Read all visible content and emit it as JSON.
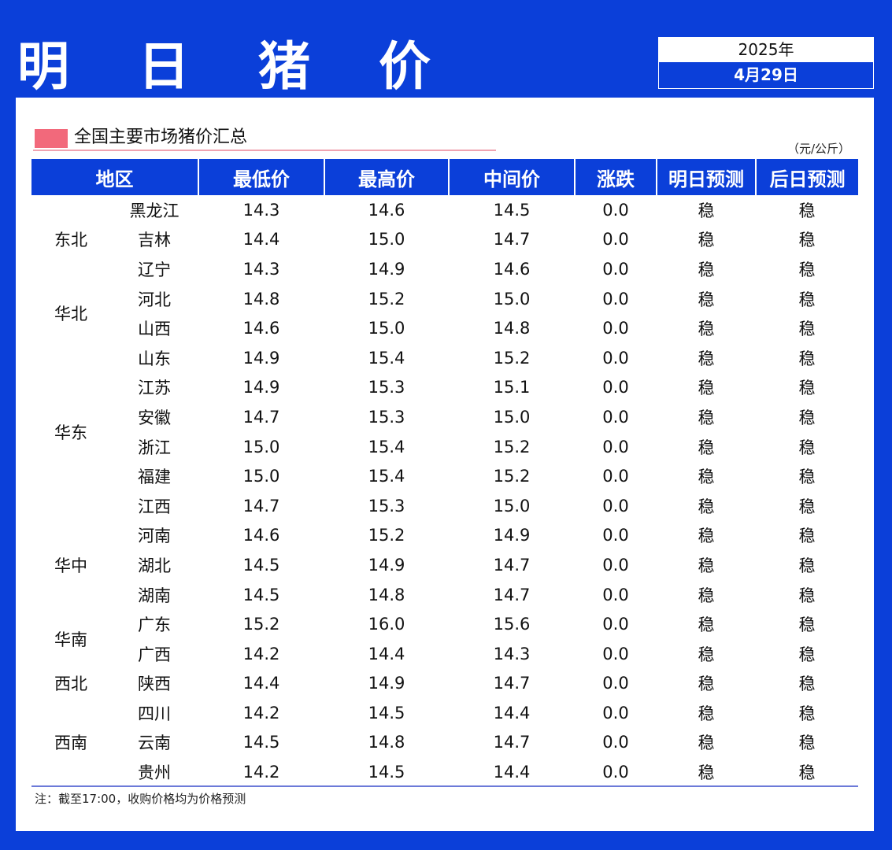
{
  "header": {
    "title": "明 日 猪 价",
    "year": "2025年",
    "date": "4月29日"
  },
  "subheader": {
    "title": "全国主要市场猪价汇总",
    "unit": "（元/公斤）"
  },
  "table": {
    "columns": [
      "地区",
      "最低价",
      "最高价",
      "中间价",
      "涨跌",
      "明日预测",
      "后日预测"
    ],
    "groups": [
      {
        "region": "东北",
        "rows": [
          {
            "province": "黑龙江",
            "low": "14.3",
            "high": "14.6",
            "mid": "14.5",
            "change": "0.0",
            "tomorrow": "稳",
            "after": "稳"
          },
          {
            "province": "吉林",
            "low": "14.4",
            "high": "15.0",
            "mid": "14.7",
            "change": "0.0",
            "tomorrow": "稳",
            "after": "稳"
          },
          {
            "province": "辽宁",
            "low": "14.3",
            "high": "14.9",
            "mid": "14.6",
            "change": "0.0",
            "tomorrow": "稳",
            "after": "稳"
          }
        ]
      },
      {
        "region": "华北",
        "rows": [
          {
            "province": "河北",
            "low": "14.8",
            "high": "15.2",
            "mid": "15.0",
            "change": "0.0",
            "tomorrow": "稳",
            "after": "稳"
          },
          {
            "province": "山西",
            "low": "14.6",
            "high": "15.0",
            "mid": "14.8",
            "change": "0.0",
            "tomorrow": "稳",
            "after": "稳"
          }
        ]
      },
      {
        "region": "华东",
        "rows": [
          {
            "province": "山东",
            "low": "14.9",
            "high": "15.4",
            "mid": "15.2",
            "change": "0.0",
            "tomorrow": "稳",
            "after": "稳"
          },
          {
            "province": "江苏",
            "low": "14.9",
            "high": "15.3",
            "mid": "15.1",
            "change": "0.0",
            "tomorrow": "稳",
            "after": "稳"
          },
          {
            "province": "安徽",
            "low": "14.7",
            "high": "15.3",
            "mid": "15.0",
            "change": "0.0",
            "tomorrow": "稳",
            "after": "稳"
          },
          {
            "province": "浙江",
            "low": "15.0",
            "high": "15.4",
            "mid": "15.2",
            "change": "0.0",
            "tomorrow": "稳",
            "after": "稳"
          },
          {
            "province": "福建",
            "low": "15.0",
            "high": "15.4",
            "mid": "15.2",
            "change": "0.0",
            "tomorrow": "稳",
            "after": "稳"
          },
          {
            "province": "江西",
            "low": "14.7",
            "high": "15.3",
            "mid": "15.0",
            "change": "0.0",
            "tomorrow": "稳",
            "after": "稳"
          }
        ]
      },
      {
        "region": "华中",
        "rows": [
          {
            "province": "河南",
            "low": "14.6",
            "high": "15.2",
            "mid": "14.9",
            "change": "0.0",
            "tomorrow": "稳",
            "after": "稳"
          },
          {
            "province": "湖北",
            "low": "14.5",
            "high": "14.9",
            "mid": "14.7",
            "change": "0.0",
            "tomorrow": "稳",
            "after": "稳"
          },
          {
            "province": "湖南",
            "low": "14.5",
            "high": "14.8",
            "mid": "14.7",
            "change": "0.0",
            "tomorrow": "稳",
            "after": "稳"
          }
        ]
      },
      {
        "region": "华南",
        "rows": [
          {
            "province": "广东",
            "low": "15.2",
            "high": "16.0",
            "mid": "15.6",
            "change": "0.0",
            "tomorrow": "稳",
            "after": "稳"
          },
          {
            "province": "广西",
            "low": "14.2",
            "high": "14.4",
            "mid": "14.3",
            "change": "0.0",
            "tomorrow": "稳",
            "after": "稳"
          }
        ]
      },
      {
        "region": "西北",
        "rows": [
          {
            "province": "陕西",
            "low": "14.4",
            "high": "14.9",
            "mid": "14.7",
            "change": "0.0",
            "tomorrow": "稳",
            "after": "稳"
          }
        ]
      },
      {
        "region": "西南",
        "rows": [
          {
            "province": "四川",
            "low": "14.2",
            "high": "14.5",
            "mid": "14.4",
            "change": "0.0",
            "tomorrow": "稳",
            "after": "稳"
          },
          {
            "province": "云南",
            "low": "14.5",
            "high": "14.8",
            "mid": "14.7",
            "change": "0.0",
            "tomorrow": "稳",
            "after": "稳"
          },
          {
            "province": "贵州",
            "low": "14.2",
            "high": "14.5",
            "mid": "14.4",
            "change": "0.0",
            "tomorrow": "稳",
            "after": "稳"
          }
        ]
      }
    ]
  },
  "footer": {
    "note": "注：截至17:00，收购价格均为价格预测"
  },
  "colors": {
    "brand_blue": "#0b3fd9",
    "accent_pink": "#f2697b"
  }
}
